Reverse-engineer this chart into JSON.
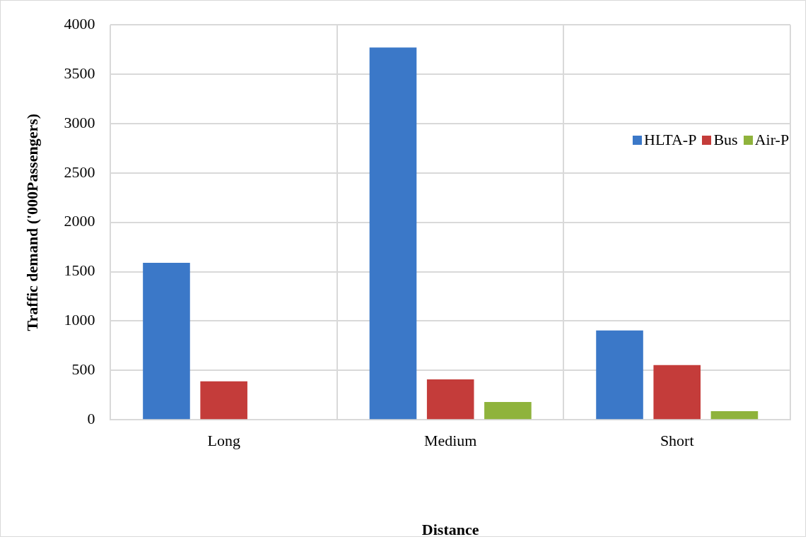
{
  "chart_data": {
    "type": "bar",
    "xlabel": "Distance",
    "ylabel": "Traffic demand ('000Passengers)",
    "categories": [
      "Long",
      "Medium",
      "Short"
    ],
    "series": [
      {
        "name": "HLTA-P",
        "color": "#3b78c8",
        "values": [
          1590,
          3770,
          905
        ]
      },
      {
        "name": "Bus",
        "color": "#c43c3a",
        "values": [
          390,
          410,
          555
        ]
      },
      {
        "name": "Air-P",
        "color": "#8fb33c",
        "values": [
          null,
          180,
          87
        ]
      }
    ],
    "ylim": [
      0,
      4000
    ],
    "yticks": [
      0,
      500,
      1000,
      1500,
      2000,
      2500,
      3000,
      3500,
      4000
    ],
    "grid": true,
    "legend": "right"
  }
}
